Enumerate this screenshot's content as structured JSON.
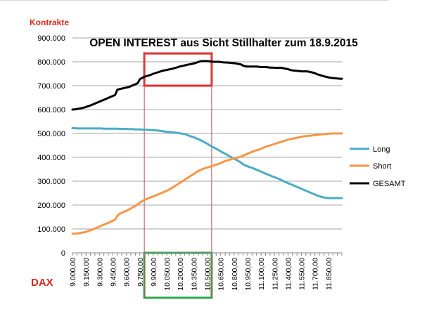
{
  "chart_data": {
    "type": "line",
    "title": "OPEN INTEREST aus Sicht Stillhalter zum 18.9.2015",
    "ylabel": "Kontrakte",
    "xlabel": "DAX",
    "ylim": [
      0,
      900000
    ],
    "grid": true,
    "legend_position": "right",
    "yticks": [
      "0",
      "100.000",
      "200.000",
      "300.000",
      "400.000",
      "500.000",
      "600.000",
      "700.000",
      "800.000",
      "900.000"
    ],
    "xticks": [
      "9.000,00",
      "9.150,00",
      "9.300,00",
      "9.450,00",
      "9.600,00",
      "9.750,00",
      "9.900,00",
      "10.050,00",
      "10.200,00",
      "10.350,00",
      "10.500,00",
      "10.650,00",
      "10.800,00",
      "10.950,00",
      "11.100,00",
      "11.250,00",
      "11.400,00",
      "11.550,00",
      "11.700,00",
      "11.850,00"
    ],
    "x": [
      9000,
      9025,
      9050,
      9075,
      9100,
      9125,
      9150,
      9175,
      9200,
      9225,
      9250,
      9275,
      9300,
      9325,
      9350,
      9375,
      9400,
      9425,
      9450,
      9475,
      9500,
      9525,
      9550,
      9575,
      9600,
      9625,
      9650,
      9675,
      9700,
      9725,
      9750,
      9775,
      9800,
      9825,
      9850,
      9875,
      9900,
      9925,
      9950,
      9975,
      10000,
      10025,
      10050,
      10075,
      10100,
      10125,
      10150,
      10175,
      10200,
      10225,
      10250,
      10275,
      10300,
      10325,
      10350,
      10375,
      10400,
      10425,
      10450,
      10475,
      10500,
      10525,
      10550,
      10575,
      10600,
      10625,
      10650,
      10675,
      10700,
      10725,
      10750,
      10775,
      10800,
      10825,
      10850,
      10875,
      10900,
      10925,
      10950,
      10975,
      11000,
      11025,
      11050,
      11075,
      11100,
      11125,
      11150,
      11175,
      11200,
      11225,
      11250,
      11275,
      11300,
      11325,
      11350,
      11375,
      11400,
      11425,
      11450,
      11475,
      11500,
      11525,
      11550,
      11575,
      11600,
      11625,
      11650,
      11675,
      11700,
      11725,
      11750,
      11775,
      11800,
      11825,
      11850,
      11875,
      11900,
      11925,
      11950,
      11975,
      12000
    ],
    "series": [
      {
        "name": "Long",
        "color": "#4BACC6",
        "values": [
          522000,
          522000,
          521000,
          521000,
          521000,
          521000,
          521000,
          521000,
          521000,
          521000,
          521000,
          521000,
          521000,
          521000,
          520000,
          520000,
          520000,
          520000,
          520000,
          520000,
          520000,
          519000,
          519000,
          519000,
          519000,
          518000,
          518000,
          518000,
          517000,
          517000,
          517000,
          516000,
          516000,
          515000,
          515000,
          514000,
          514000,
          513000,
          512000,
          511000,
          510000,
          508000,
          507000,
          506000,
          505000,
          504000,
          503000,
          502000,
          500000,
          499000,
          497000,
          494000,
          490000,
          487000,
          484000,
          480000,
          476000,
          472000,
          467000,
          462000,
          457000,
          451000,
          446000,
          441000,
          436000,
          431000,
          425000,
          420000,
          415000,
          410000,
          404000,
          399000,
          394000,
          389000,
          384000,
          378000,
          371000,
          366000,
          362000,
          359000,
          356000,
          352000,
          348000,
          344000,
          340000,
          336000,
          332000,
          328000,
          324000,
          320000,
          317000,
          313000,
          309000,
          305000,
          300000,
          296000,
          292000,
          288000,
          284000,
          280000,
          276000,
          272000,
          268000,
          264000,
          260000,
          256000,
          252000,
          248000,
          244000,
          240000,
          237000,
          234000,
          232000,
          230000,
          229000,
          229000,
          229000,
          229000,
          229000,
          229000,
          229000
        ]
      },
      {
        "name": "Short",
        "color": "#F79646",
        "values": [
          80000,
          80000,
          81000,
          82000,
          84000,
          86000,
          88000,
          91000,
          94000,
          98000,
          102000,
          106000,
          110000,
          114000,
          118000,
          122000,
          126000,
          130000,
          134000,
          139000,
          155000,
          163000,
          168000,
          172000,
          176000,
          181000,
          186000,
          191000,
          196000,
          202000,
          210000,
          216000,
          221000,
          225000,
          229000,
          233000,
          236000,
          240000,
          244000,
          248000,
          252000,
          256000,
          260000,
          265000,
          270000,
          276000,
          282000,
          288000,
          294000,
          300000,
          306000,
          312000,
          318000,
          324000,
          330000,
          336000,
          342000,
          347000,
          351000,
          354000,
          357000,
          360000,
          363000,
          366000,
          369000,
          372000,
          376000,
          380000,
          384000,
          387000,
          390000,
          393000,
          396000,
          398000,
          400000,
          403000,
          407000,
          411000,
          415000,
          419000,
          423000,
          426000,
          429000,
          432000,
          436000,
          440000,
          444000,
          447000,
          450000,
          453000,
          456000,
          459000,
          462000,
          465000,
          468000,
          471000,
          474000,
          476000,
          478000,
          480000,
          482000,
          484000,
          486000,
          488000,
          489000,
          490000,
          491000,
          492000,
          493000,
          494000,
          495000,
          496000,
          497000,
          498000,
          499000,
          499000,
          500000,
          500000,
          500000,
          500000,
          500000
        ]
      },
      {
        "name": "GESAMT",
        "color": "#000000",
        "values": [
          600000,
          601000,
          602000,
          604000,
          606000,
          608000,
          611000,
          614000,
          617000,
          621000,
          625000,
          629000,
          633000,
          637000,
          641000,
          645000,
          649000,
          653000,
          657000,
          661000,
          683000,
          686000,
          688000,
          690000,
          692000,
          694000,
          698000,
          702000,
          706000,
          710000,
          727000,
          732000,
          737000,
          740000,
          743000,
          746000,
          750000,
          753000,
          756000,
          759000,
          762000,
          764000,
          766000,
          768000,
          770000,
          772000,
          775000,
          778000,
          781000,
          783000,
          785000,
          787000,
          789000,
          791000,
          793000,
          796000,
          799000,
          802000,
          803000,
          803000,
          803000,
          802000,
          801000,
          800000,
          800000,
          800000,
          799000,
          798000,
          797000,
          797000,
          796000,
          795000,
          794000,
          793000,
          791000,
          789000,
          784000,
          781000,
          780000,
          780000,
          780000,
          780000,
          780000,
          779000,
          778000,
          778000,
          778000,
          777000,
          776000,
          776000,
          775000,
          775000,
          775000,
          775000,
          773000,
          771000,
          769000,
          766000,
          764000,
          763000,
          762000,
          761000,
          760000,
          760000,
          760000,
          759000,
          757000,
          755000,
          752000,
          748000,
          745000,
          742000,
          739000,
          737000,
          735000,
          733000,
          732000,
          731000,
          730000,
          729000,
          729000
        ]
      }
    ],
    "annotations": [
      {
        "type": "rect",
        "color": "#E03030",
        "x_from": 9800,
        "x_to": 10550,
        "y_from": 700000,
        "y_to": 835000
      },
      {
        "type": "rect",
        "color": "#2AA84A",
        "x_from": 9800,
        "x_to": 10550,
        "below_axis": true
      },
      {
        "type": "vline",
        "color": "#C0504D",
        "x": 9800
      },
      {
        "type": "vline",
        "color": "#C0504D",
        "x": 10550
      }
    ]
  }
}
